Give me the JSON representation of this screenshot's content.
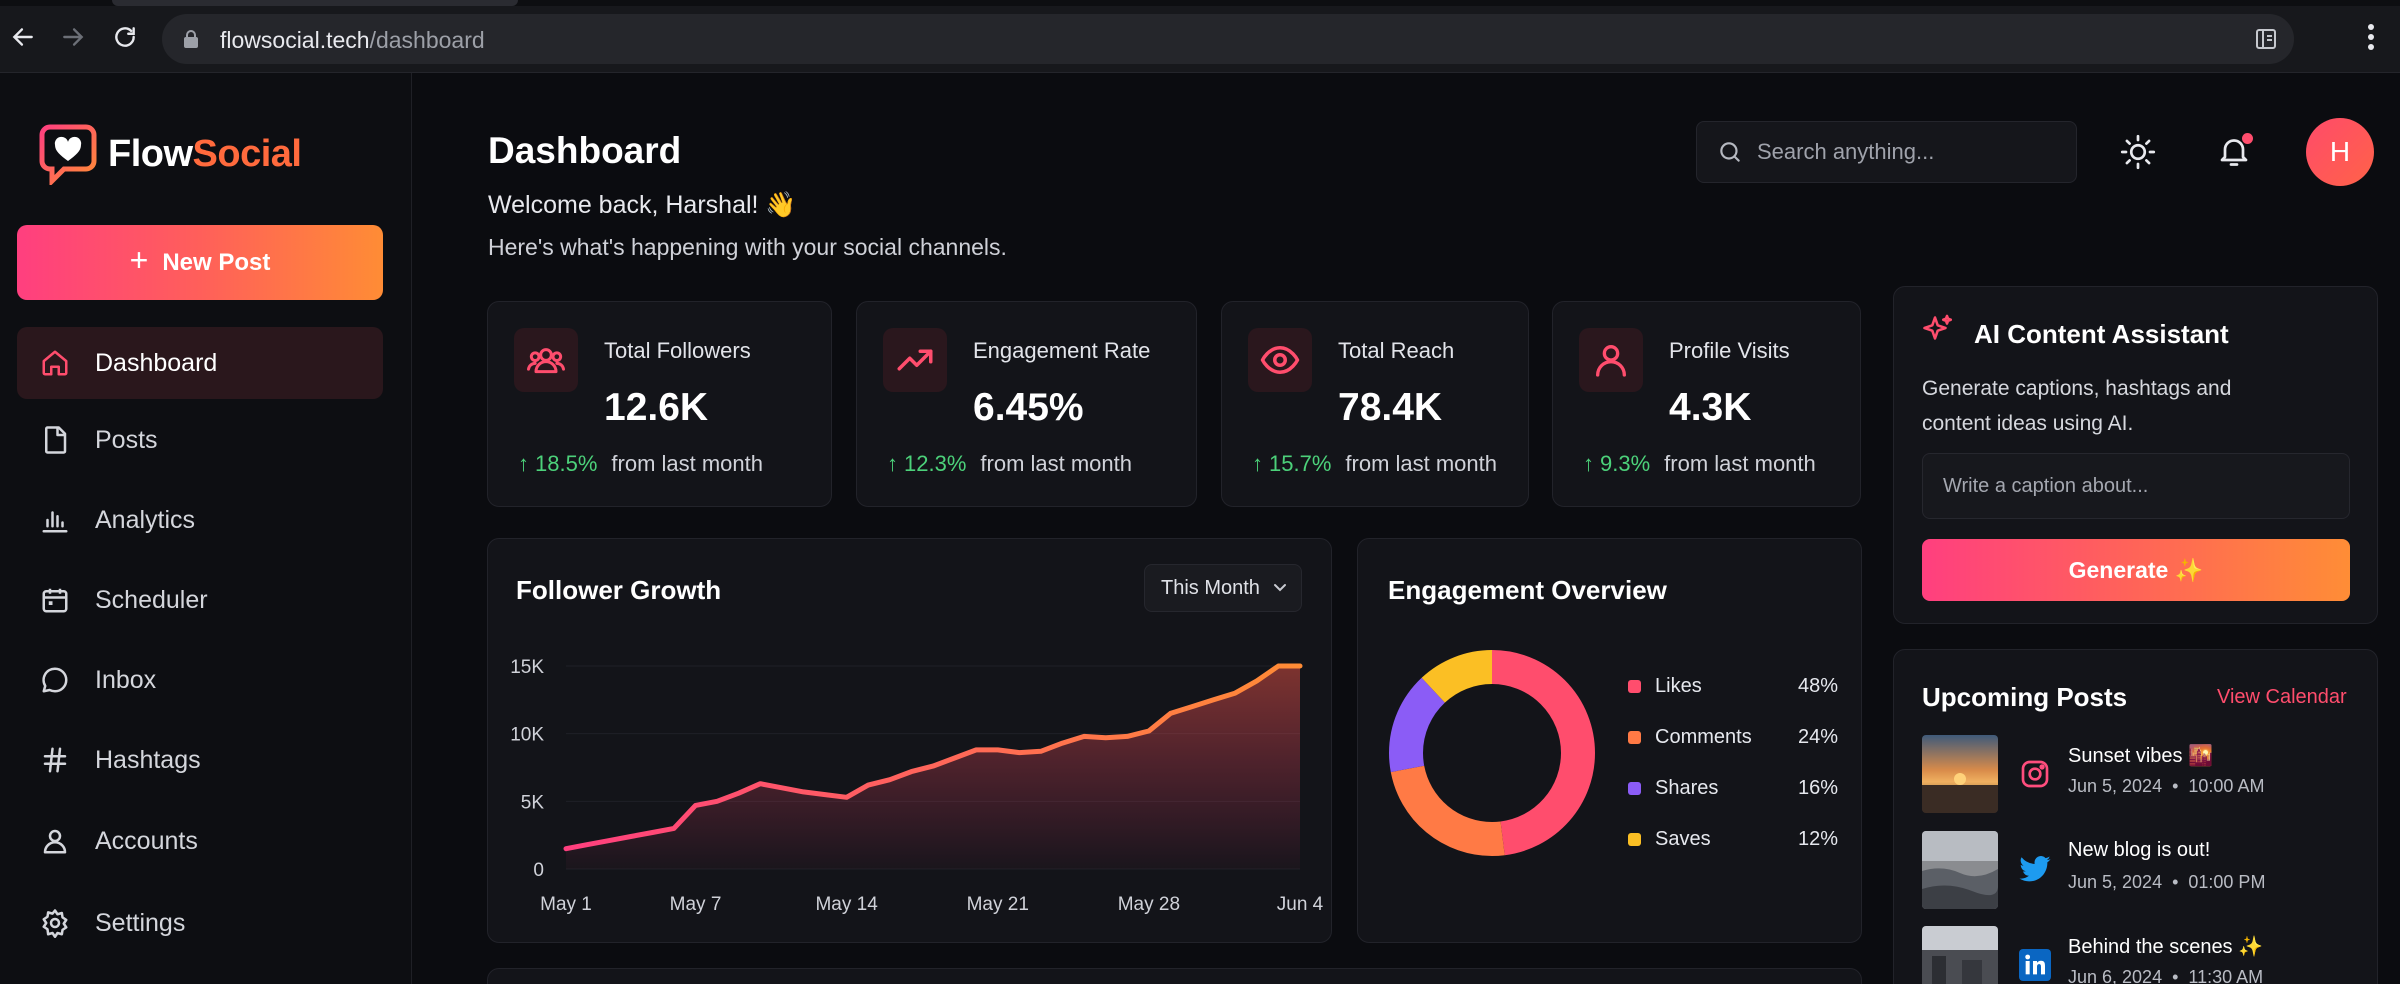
{
  "browser": {
    "url_host": "flowsocial.tech",
    "url_path": "/dashboard"
  },
  "app": {
    "logo_part1": "Flow",
    "logo_part2": "Social"
  },
  "sidebar": {
    "new_post_label": "New Post",
    "items": [
      {
        "label": "Dashboard",
        "icon": "home-icon",
        "active": true
      },
      {
        "label": "Posts",
        "icon": "file-icon"
      },
      {
        "label": "Analytics",
        "icon": "bar-chart-icon"
      },
      {
        "label": "Scheduler",
        "icon": "calendar-icon"
      },
      {
        "label": "Inbox",
        "icon": "message-icon"
      },
      {
        "label": "Hashtags",
        "icon": "hash-icon"
      },
      {
        "label": "Accounts",
        "icon": "user-icon"
      },
      {
        "label": "Settings",
        "icon": "gear-icon"
      }
    ]
  },
  "header": {
    "title": "Dashboard",
    "welcome": "Welcome back, Harshal! 👋",
    "subtitle": "Here's what's happening with your social channels.",
    "search_placeholder": "Search anything...",
    "avatar_initial": "H"
  },
  "stats": [
    {
      "label": "Total Followers",
      "value": "12.6K",
      "change": "18.5%",
      "change_text": "from last month",
      "icon": "users-icon"
    },
    {
      "label": "Engagement Rate",
      "value": "6.45%",
      "change": "12.3%",
      "change_text": "from last month",
      "icon": "trend-up-icon"
    },
    {
      "label": "Total Reach",
      "value": "78.4K",
      "change": "15.7%",
      "change_text": "from last month",
      "icon": "eye-icon"
    },
    {
      "label": "Profile Visits",
      "value": "4.3K",
      "change": "9.3%",
      "change_text": "from last month",
      "icon": "user-icon"
    }
  ],
  "follower_growth": {
    "title": "Follower Growth",
    "range_label": "This Month",
    "chart_data": {
      "type": "area",
      "title": "Follower Growth",
      "xlabel": "",
      "ylabel": "",
      "x_ticks": [
        "May 1",
        "May 7",
        "May 14",
        "May 21",
        "May 28",
        "Jun 4"
      ],
      "y_ticks": [
        "0",
        "5K",
        "10K",
        "15K"
      ],
      "ylim": [
        0,
        15000
      ],
      "grid": "horizontal",
      "x": [
        "May 1",
        "May 2",
        "May 3",
        "May 4",
        "May 5",
        "May 6",
        "May 7",
        "May 8",
        "May 9",
        "May 10",
        "May 11",
        "May 12",
        "May 13",
        "May 14",
        "May 15",
        "May 16",
        "May 17",
        "May 18",
        "May 19",
        "May 20",
        "May 21",
        "May 22",
        "May 23",
        "May 24",
        "May 25",
        "May 26",
        "May 27",
        "May 28",
        "May 29",
        "May 30",
        "May 31",
        "Jun 1",
        "Jun 2",
        "Jun 3",
        "Jun 4"
      ],
      "values": [
        1500,
        1800,
        2100,
        2400,
        2700,
        3000,
        4700,
        5000,
        5600,
        6300,
        6000,
        5700,
        5500,
        5300,
        6200,
        6600,
        7200,
        7600,
        8200,
        8800,
        8800,
        8600,
        8700,
        9300,
        9800,
        9700,
        9800,
        10200,
        11500,
        12000,
        12500,
        13000,
        13900,
        15000,
        15000
      ]
    }
  },
  "engagement": {
    "title": "Engagement Overview",
    "chart_data": {
      "type": "pie",
      "donut": true,
      "title": "Engagement Overview",
      "categories": [
        "Likes",
        "Comments",
        "Shares",
        "Saves"
      ],
      "values": [
        48,
        24,
        16,
        12
      ],
      "value_labels": [
        "48%",
        "24%",
        "16%",
        "12%"
      ],
      "colors": [
        "#ff4d6d",
        "#ff7a45",
        "#8b5cf6",
        "#fbbf24"
      ],
      "legend": "right"
    }
  },
  "ai": {
    "title": "AI Content Assistant",
    "description_line1": "Generate captions, hashtags and",
    "description_line2": "content ideas using AI.",
    "input_placeholder": "Write a caption about...",
    "button_label": "Generate ✨"
  },
  "upcoming": {
    "title": "Upcoming Posts",
    "link_label": "View Calendar",
    "posts": [
      {
        "title": "Sunset vibes 🌇",
        "date": "Jun 5, 2024",
        "time": "10:00 AM",
        "platform": "instagram-icon"
      },
      {
        "title": "New blog is out!",
        "date": "Jun 5, 2024",
        "time": "01:00 PM",
        "platform": "twitter-icon"
      },
      {
        "title": "Behind the scenes ✨",
        "date": "Jun 6, 2024",
        "time": "11:30 AM",
        "platform": "linkedin-icon"
      }
    ]
  },
  "colors": {
    "accent": "#ff4d6d",
    "accent_orange": "#ff8c35",
    "positive": "#4cd17a",
    "background": "#0b0c10",
    "card": "#131419"
  }
}
